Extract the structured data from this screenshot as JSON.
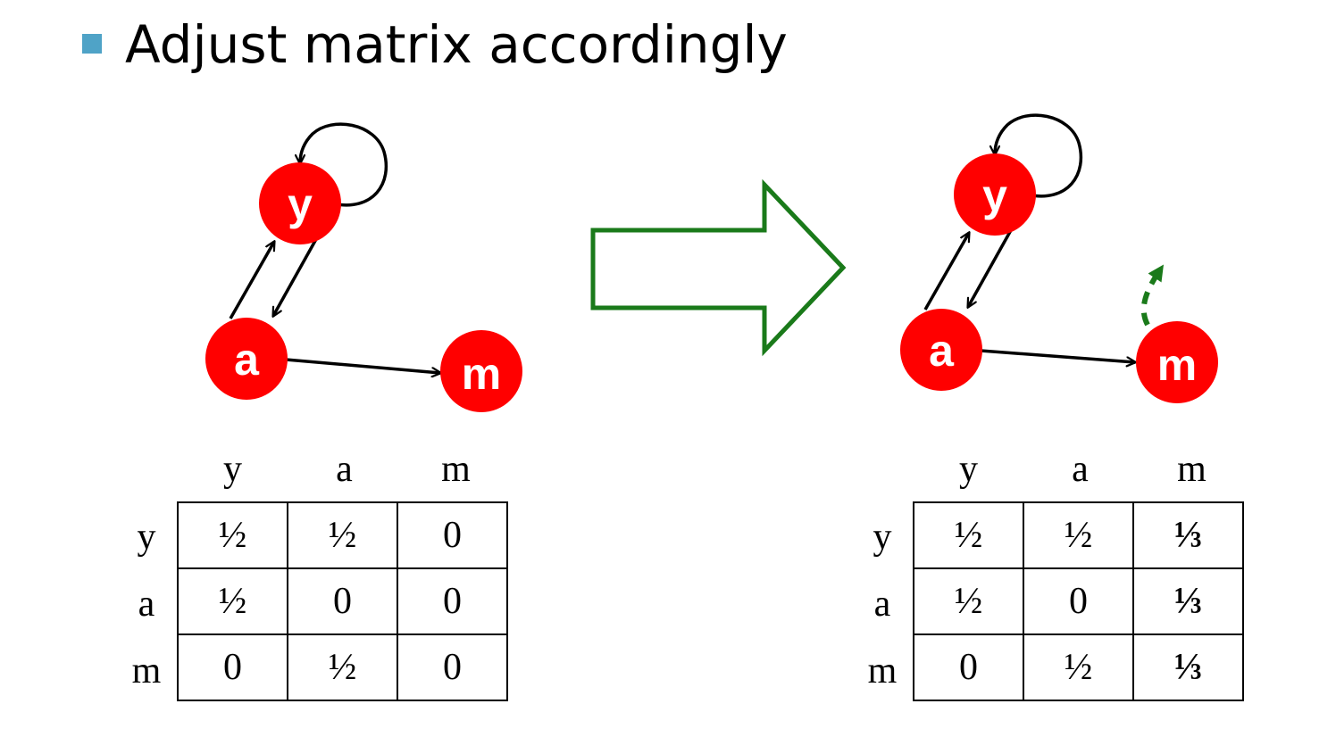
{
  "title": "Adjust matrix accordingly",
  "colors": {
    "node": "#ff0000",
    "edge": "#000000",
    "arrow_outline": "#1a7a1a",
    "dashed_edge": "#1a7a1a",
    "bullet": "#4fa3c7"
  },
  "left_graph": {
    "nodes": {
      "y": "y",
      "a": "a",
      "m": "m"
    },
    "edges": [
      "y->y",
      "a->y",
      "y->a",
      "a->m"
    ]
  },
  "right_graph": {
    "nodes": {
      "y": "y",
      "a": "a",
      "m": "m"
    },
    "edges": [
      "y->y",
      "a->y",
      "y->a",
      "a->m",
      "m->teleport (dashed)"
    ]
  },
  "left_matrix": {
    "columns": [
      "y",
      "a",
      "m"
    ],
    "rows": [
      {
        "label": "y",
        "cells": [
          "½",
          "½",
          "0"
        ]
      },
      {
        "label": "a",
        "cells": [
          "½",
          "0",
          "0"
        ]
      },
      {
        "label": "m",
        "cells": [
          "0",
          "½",
          "0"
        ]
      }
    ]
  },
  "right_matrix": {
    "columns": [
      "y",
      "a",
      "m"
    ],
    "rows": [
      {
        "label": "y",
        "cells": [
          "½",
          "½",
          "⅓"
        ]
      },
      {
        "label": "a",
        "cells": [
          "½",
          "0",
          "⅓"
        ]
      },
      {
        "label": "m",
        "cells": [
          "0",
          "½",
          "⅓"
        ]
      }
    ]
  }
}
